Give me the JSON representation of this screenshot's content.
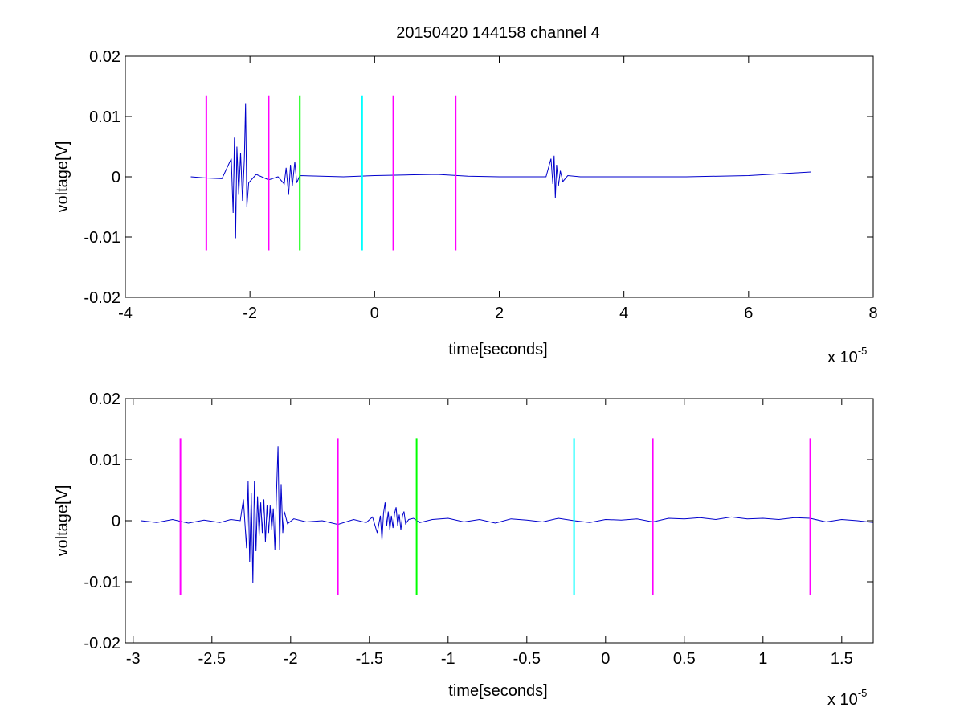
{
  "figure": {
    "title": "20150420 144158 channel 4"
  },
  "chart_data": [
    {
      "type": "line",
      "title": "20150420 144158 channel 4",
      "xlabel": "time[seconds]",
      "ylabel": "voltage[V]",
      "x_exponent_label": "x 10",
      "x_exponent_power": "-5",
      "xlim": [
        -4,
        8
      ],
      "ylim": [
        -0.02,
        0.02
      ],
      "x_ticks": [
        "-4",
        "-2",
        "0",
        "2",
        "4",
        "6",
        "8"
      ],
      "y_ticks": [
        "-0.02",
        "-0.01",
        "0",
        "0.01",
        "0.02"
      ],
      "grid": false,
      "series": [
        {
          "color": "#0000cc",
          "x": [
            -2.95,
            -2.7,
            -2.45,
            -2.3,
            -2.27,
            -2.25,
            -2.23,
            -2.21,
            -2.18,
            -2.15,
            -2.12,
            -2.09,
            -2.07,
            -2.05,
            -2.02,
            -1.9,
            -1.7,
            -1.55,
            -1.45,
            -1.42,
            -1.38,
            -1.35,
            -1.32,
            -1.28,
            -1.25,
            -1.2,
            -0.5,
            0.0,
            0.5,
            1.0,
            1.5,
            2.0,
            2.5,
            2.75,
            2.83,
            2.86,
            2.88,
            2.9,
            2.92,
            2.95,
            2.98,
            3.02,
            3.1,
            3.3,
            4.0,
            5.0,
            6.0,
            6.5,
            7.0
          ],
          "y": [
            0.0,
            -0.0002,
            -0.0003,
            0.003,
            -0.006,
            0.0065,
            -0.0102,
            0.005,
            -0.003,
            0.004,
            -0.004,
            0.003,
            0.0122,
            -0.005,
            -0.001,
            0.0004,
            -0.0005,
            0.0,
            -0.0012,
            0.0015,
            -0.003,
            0.002,
            -0.0015,
            0.0025,
            -0.001,
            0.0002,
            0.0,
            0.0002,
            0.0003,
            0.0004,
            0.0001,
            0.0,
            0.0,
            0.0,
            0.003,
            -0.0012,
            0.0035,
            -0.0035,
            0.002,
            -0.0015,
            0.001,
            -0.0008,
            0.0002,
            0.0,
            0.0,
            0.0,
            0.0002,
            0.0005,
            0.0008
          ]
        }
      ],
      "markers": [
        {
          "x": -2.7,
          "color": "#ff00ff",
          "ymin": -0.0122,
          "ymax": 0.0135
        },
        {
          "x": -1.7,
          "color": "#ff00ff",
          "ymin": -0.0122,
          "ymax": 0.0135
        },
        {
          "x": -1.2,
          "color": "#00ff00",
          "ymin": -0.0122,
          "ymax": 0.0135
        },
        {
          "x": -0.2,
          "color": "#00ffff",
          "ymin": -0.0122,
          "ymax": 0.0135
        },
        {
          "x": 0.3,
          "color": "#ff00ff",
          "ymin": -0.0122,
          "ymax": 0.0135
        },
        {
          "x": 1.3,
          "color": "#ff00ff",
          "ymin": -0.0122,
          "ymax": 0.0135
        }
      ]
    },
    {
      "type": "line",
      "title": "",
      "xlabel": "time[seconds]",
      "ylabel": "voltage[V]",
      "x_exponent_label": "x 10",
      "x_exponent_power": "-5",
      "xlim": [
        -3.05,
        1.7
      ],
      "ylim": [
        -0.02,
        0.02
      ],
      "x_ticks": [
        "-3",
        "-2.5",
        "-2",
        "-1.5",
        "-1",
        "-0.5",
        "0",
        "0.5",
        "1",
        "1.5"
      ],
      "y_ticks": [
        "-0.02",
        "-0.01",
        "0",
        "0.01",
        "0.02"
      ],
      "grid": false,
      "series": [
        {
          "color": "#0000cc",
          "x": [
            -2.95,
            -2.85,
            -2.75,
            -2.65,
            -2.55,
            -2.45,
            -2.38,
            -2.32,
            -2.3,
            -2.28,
            -2.27,
            -2.26,
            -2.25,
            -2.24,
            -2.23,
            -2.22,
            -2.21,
            -2.2,
            -2.19,
            -2.18,
            -2.17,
            -2.16,
            -2.15,
            -2.14,
            -2.13,
            -2.12,
            -2.11,
            -2.1,
            -2.09,
            -2.08,
            -2.07,
            -2.06,
            -2.05,
            -2.04,
            -2.02,
            -1.98,
            -1.9,
            -1.8,
            -1.7,
            -1.6,
            -1.52,
            -1.48,
            -1.45,
            -1.43,
            -1.42,
            -1.41,
            -1.4,
            -1.39,
            -1.38,
            -1.37,
            -1.36,
            -1.35,
            -1.34,
            -1.33,
            -1.32,
            -1.31,
            -1.3,
            -1.29,
            -1.28,
            -1.27,
            -1.25,
            -1.22,
            -1.18,
            -1.1,
            -1.0,
            -0.9,
            -0.8,
            -0.7,
            -0.6,
            -0.5,
            -0.4,
            -0.3,
            -0.2,
            -0.1,
            0.0,
            0.1,
            0.2,
            0.3,
            0.4,
            0.5,
            0.6,
            0.7,
            0.8,
            0.9,
            1.0,
            1.1,
            1.2,
            1.3,
            1.4,
            1.5,
            1.6,
            1.7
          ],
          "y": [
            0.0,
            -0.0003,
            0.0002,
            -0.0004,
            0.0001,
            -0.0003,
            0.0002,
            0.0,
            0.0035,
            -0.0045,
            0.0065,
            -0.0068,
            0.0045,
            -0.0102,
            0.0065,
            -0.005,
            0.004,
            -0.0025,
            0.003,
            -0.002,
            0.0035,
            -0.0035,
            0.0025,
            -0.002,
            0.0025,
            -0.0015,
            0.002,
            -0.0048,
            0.0045,
            0.0122,
            -0.0048,
            0.006,
            -0.002,
            0.0015,
            -0.0005,
            0.0003,
            -0.0002,
            0.0,
            -0.0006,
            0.0002,
            -0.0003,
            0.0006,
            -0.002,
            0.0008,
            -0.0032,
            0.0012,
            0.003,
            -0.0008,
            0.0015,
            -0.0015,
            0.0008,
            -0.0012,
            0.0012,
            0.0022,
            -0.0008,
            0.001,
            -0.0015,
            0.0008,
            0.0015,
            -0.0005,
            0.0002,
            0.0004,
            -0.0003,
            0.0002,
            0.0004,
            -0.0002,
            0.0002,
            -0.0004,
            0.0003,
            0.0001,
            -0.0002,
            0.0004,
            0.0,
            -0.0003,
            0.0002,
            0.0001,
            0.0003,
            -0.0002,
            0.0004,
            0.0003,
            0.0005,
            0.0002,
            0.0006,
            0.0003,
            0.0004,
            0.0002,
            0.0005,
            0.0004,
            -0.0002,
            0.0002,
            0.0,
            -0.0003
          ]
        }
      ],
      "markers": [
        {
          "x": -2.7,
          "color": "#ff00ff",
          "ymin": -0.0122,
          "ymax": 0.0135
        },
        {
          "x": -1.7,
          "color": "#ff00ff",
          "ymin": -0.0122,
          "ymax": 0.0135
        },
        {
          "x": -1.2,
          "color": "#00ff00",
          "ymin": -0.0122,
          "ymax": 0.0135
        },
        {
          "x": -0.2,
          "color": "#00ffff",
          "ymin": -0.0122,
          "ymax": 0.0135
        },
        {
          "x": 0.3,
          "color": "#ff00ff",
          "ymin": -0.0122,
          "ymax": 0.0135
        },
        {
          "x": 1.3,
          "color": "#ff00ff",
          "ymin": -0.0122,
          "ymax": 0.0135
        }
      ]
    }
  ]
}
